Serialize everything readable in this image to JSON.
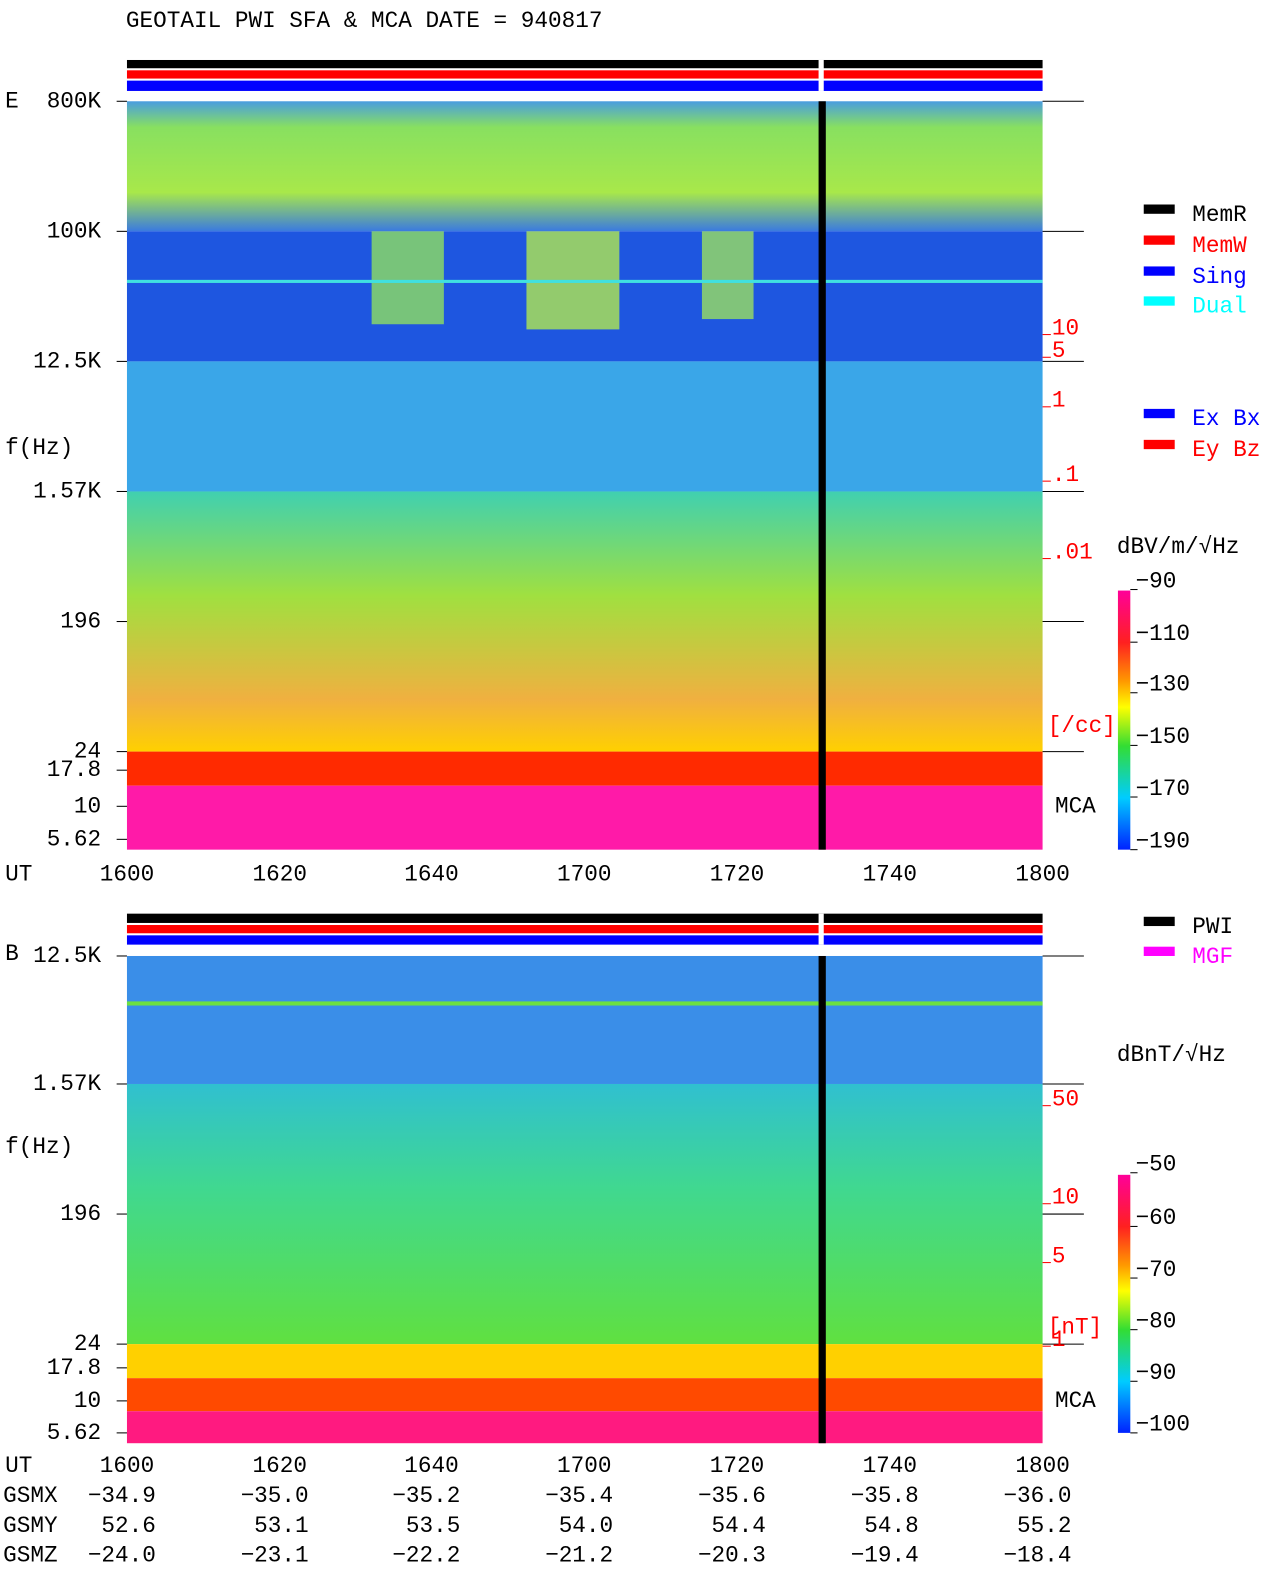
{
  "title": "GEOTAIL  PWI SFA & MCA   DATE = 940817",
  "panels": [
    {
      "label": "E",
      "axis_label": "f(Hz)",
      "yticks": [
        "800K",
        "100K",
        "12.5K",
        "1.57K",
        "196",
        "24",
        "17.8",
        "10",
        "5.62"
      ],
      "right_ticks": [
        "10",
        "5",
        "1",
        ".1",
        ".01"
      ],
      "right_unit": "[/cc]",
      "mca": "MCA",
      "colorbar_title": "dBV/m/√Hz",
      "colorbar_ticks": [
        "−90",
        "−110",
        "−130",
        "−150",
        "−170",
        "−190"
      ],
      "legend": [
        {
          "name": "MemR",
          "color": "#000000"
        },
        {
          "name": "MemW",
          "color": "#ff0000"
        },
        {
          "name": "Sing",
          "color": "#0000ff"
        },
        {
          "name": "Dual",
          "color": "#00ffff"
        }
      ],
      "legend2": [
        {
          "name": "Ex Bx",
          "color": "#0000ff"
        },
        {
          "name": "Ey Bz",
          "color": "#ff0000"
        }
      ]
    },
    {
      "label": "B",
      "axis_label": "f(Hz)",
      "yticks": [
        "12.5K",
        "1.57K",
        "196",
        "24",
        "17.8",
        "10",
        "5.62"
      ],
      "right_ticks": [
        "50",
        "10",
        "5",
        "1"
      ],
      "right_unit": "[nT]",
      "mca": "MCA",
      "colorbar_title": "dBnT/√Hz",
      "colorbar_ticks": [
        "−50",
        "−60",
        "−70",
        "−80",
        "−90",
        "−100"
      ],
      "legend": [
        {
          "name": "PWI",
          "color": "#000000"
        },
        {
          "name": "MGF",
          "color": "#ff00ff"
        }
      ]
    }
  ],
  "x_label": "UT",
  "xticks": [
    "1600",
    "1620",
    "1640",
    "1700",
    "1720",
    "1740",
    "1800"
  ],
  "orbit": [
    {
      "name": "GSMX",
      "values": [
        "−34.9",
        "−35.0",
        "−35.2",
        "−35.4",
        "−35.6",
        "−35.8",
        "−36.0"
      ]
    },
    {
      "name": "GSMY",
      "values": [
        "52.6",
        "53.1",
        "53.5",
        "54.0",
        "54.4",
        "54.8",
        "55.2"
      ]
    },
    {
      "name": "GSMZ",
      "values": [
        "−24.0",
        "−23.1",
        "−22.2",
        "−21.2",
        "−20.3",
        "−19.4",
        "−18.4"
      ]
    }
  ]
}
